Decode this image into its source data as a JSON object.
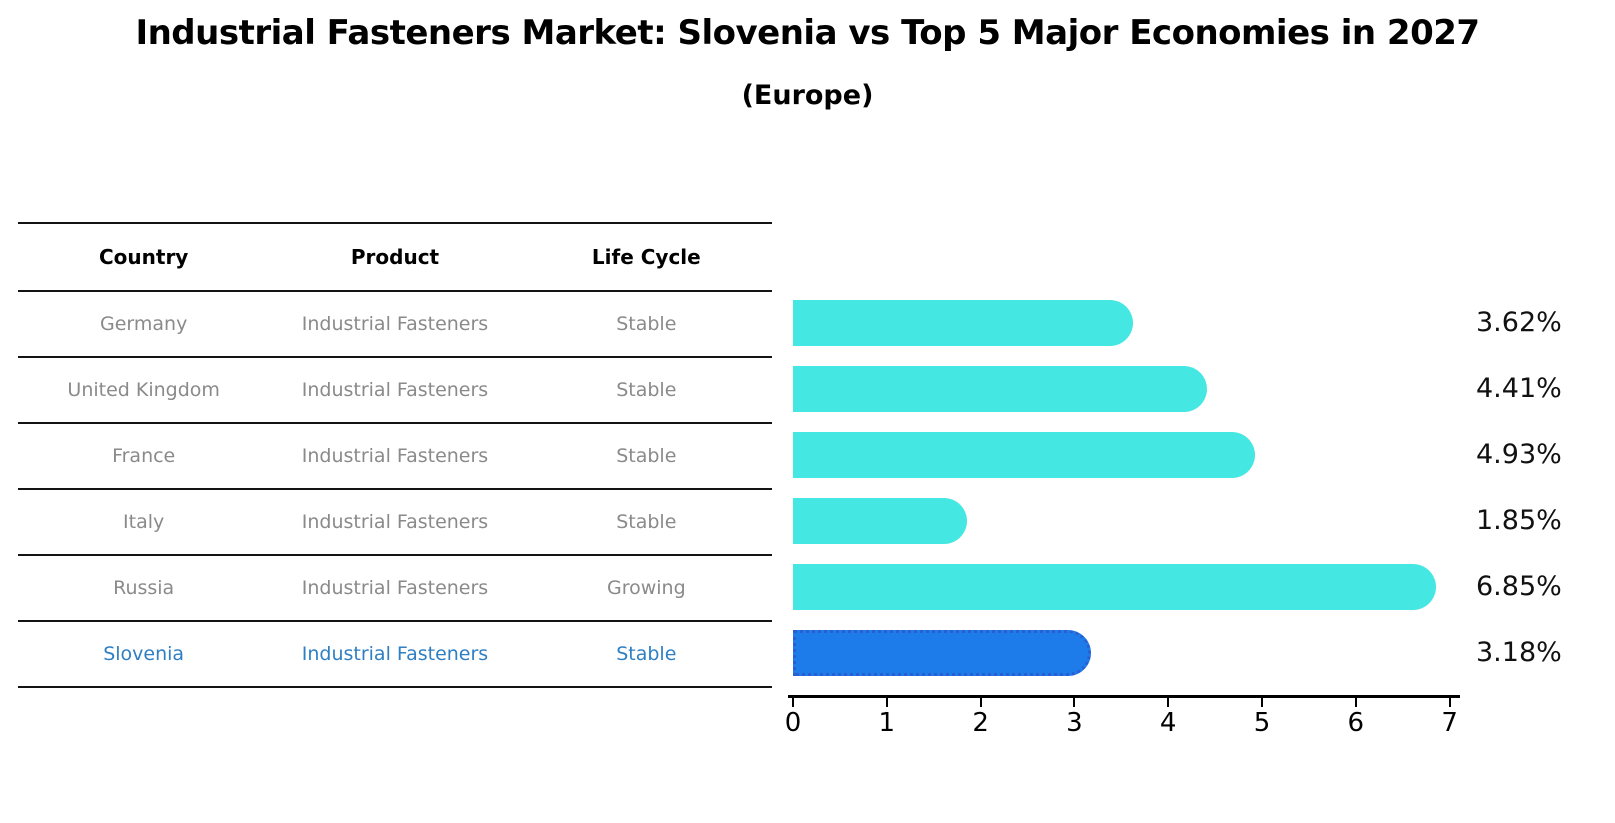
{
  "title": "Industrial Fasteners Market: Slovenia vs Top 5 Major Economies in 2027",
  "subtitle": "(Europe)",
  "table": {
    "headers": [
      "Country",
      "Product",
      "Life Cycle"
    ],
    "rows": [
      {
        "country": "Germany",
        "product": "Industrial Fasteners",
        "life_cycle": "Stable",
        "highlight": false
      },
      {
        "country": "United Kingdom",
        "product": "Industrial Fasteners",
        "life_cycle": "Stable",
        "highlight": false
      },
      {
        "country": "France",
        "product": "Industrial Fasteners",
        "life_cycle": "Stable",
        "highlight": false
      },
      {
        "country": "Italy",
        "product": "Industrial Fasteners",
        "life_cycle": "Stable",
        "highlight": false
      },
      {
        "country": "Russia",
        "product": "Industrial Fasteners",
        "life_cycle": "Growing",
        "highlight": false
      },
      {
        "country": "Slovenia",
        "product": "Industrial Fasteners",
        "life_cycle": "Stable",
        "highlight": true
      }
    ]
  },
  "chart_data": {
    "type": "bar",
    "orientation": "horizontal",
    "categories": [
      "Germany",
      "United Kingdom",
      "France",
      "Italy",
      "Russia",
      "Slovenia"
    ],
    "values": [
      3.62,
      4.41,
      4.93,
      1.85,
      6.85,
      3.18
    ],
    "value_labels": [
      "3.62%",
      "4.41%",
      "4.93%",
      "1.85%",
      "6.85%",
      "3.18%"
    ],
    "x_ticks": [
      "0",
      "1",
      "2",
      "3",
      "4",
      "5",
      "6",
      "7"
    ],
    "xlim": [
      0,
      7
    ],
    "grid": false,
    "legend": false,
    "bar_color": "#45e7e3",
    "highlight_color": "#1d7ce9",
    "highlight_index": 5,
    "title": "Industrial Fasteners Market: Slovenia vs Top 5 Major Economies in 2027",
    "subtitle": "(Europe)",
    "xlabel": "",
    "ylabel": ""
  },
  "colors": {
    "background": "#ffffff",
    "table_line": "#141414",
    "table_text": "#8a8a8a",
    "highlight_text": "#2e7fc4",
    "bar": "#45e7e3",
    "highlight_bar": "#1d7ce9",
    "highlight_bar_border": "#2a5fd2",
    "axis": "#000000",
    "value_label": "#111111"
  }
}
